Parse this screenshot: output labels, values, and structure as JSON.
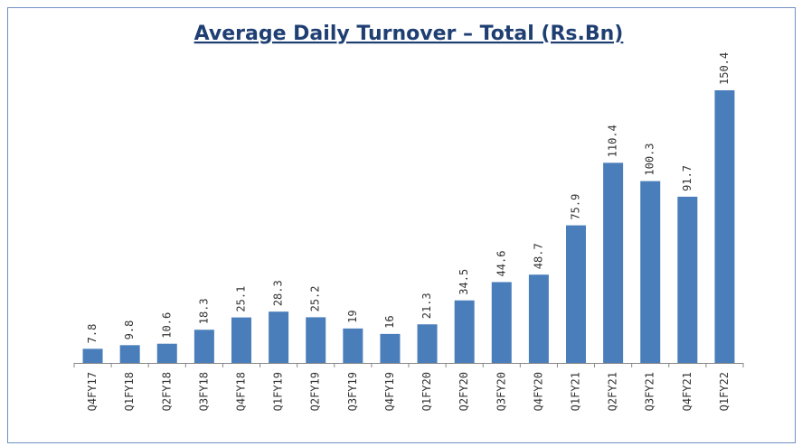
{
  "chart_data": {
    "type": "bar",
    "title": "Average Daily Turnover – Total (Rs.Bn)",
    "categories": [
      "Q4FY17",
      "Q1FY18",
      "Q2FY18",
      "Q3FY18",
      "Q4FY18",
      "Q1FY19",
      "Q2FY19",
      "Q3FY19",
      "Q4FY19",
      "Q1FY20",
      "Q2FY20",
      "Q3FY20",
      "Q4FY20",
      "Q1FY21",
      "Q2FY21",
      "Q3FY21",
      "Q4FY21",
      "Q1FY22"
    ],
    "values": [
      7.8,
      9.8,
      10.6,
      18.3,
      25.1,
      28.3,
      25.2,
      19,
      16,
      21.3,
      34.5,
      44.6,
      48.7,
      75.9,
      110.4,
      100.3,
      91.7,
      150.4
    ],
    "color": "#4a7ebb"
  }
}
